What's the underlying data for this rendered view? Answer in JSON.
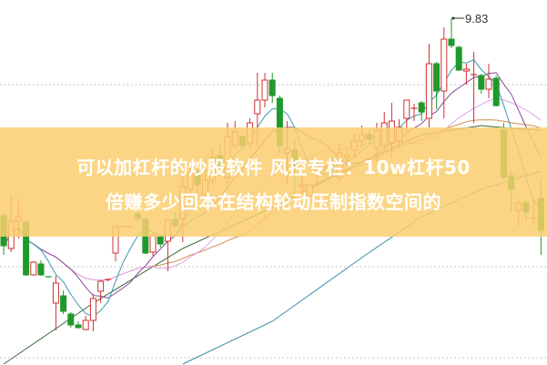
{
  "chart_data": {
    "type": "candlestick",
    "title": "",
    "grid": true,
    "max_label": "9.83",
    "colors": {
      "up": "#d03030",
      "down": "#1e9a2a",
      "ma5": "#3a9ab0",
      "ma10": "#8a4a9a",
      "ma20": "#e0a0e8",
      "ma30": "#d09050",
      "long_a": "#3c6a40",
      "long_b": "#3a8aa8",
      "grid": "#b8b8b8"
    },
    "candles": [
      [
        7.66,
        7.7,
        7.23,
        7.33
      ],
      [
        7.3,
        7.88,
        7.26,
        7.6
      ],
      [
        7.6,
        7.85,
        7.41,
        7.65
      ],
      [
        7.59,
        7.62,
        7.0,
        7.01
      ],
      [
        7.01,
        7.16,
        7.0,
        7.15
      ],
      [
        7.13,
        7.17,
        7.0,
        7.01
      ],
      [
        6.99,
        6.99,
        6.98,
        6.98
      ],
      [
        6.7,
        7.0,
        6.4,
        6.92
      ],
      [
        6.78,
        6.84,
        6.58,
        6.61
      ],
      [
        6.58,
        6.6,
        6.43,
        6.46
      ],
      [
        6.46,
        6.5,
        6.42,
        6.43
      ],
      [
        6.41,
        6.56,
        6.4,
        6.51
      ],
      [
        6.51,
        6.8,
        6.39,
        6.75
      ],
      [
        6.83,
        6.95,
        6.7,
        6.94
      ],
      [
        6.95,
        6.97,
        6.94,
        6.96
      ],
      [
        7.25,
        7.54,
        7.16,
        7.54
      ],
      [
        7.54,
        7.54,
        7.54,
        7.54
      ],
      [
        7.54,
        7.54,
        7.54,
        7.54
      ],
      [
        7.68,
        7.72,
        7.58,
        7.63
      ],
      [
        7.62,
        7.64,
        7.24,
        7.25
      ],
      [
        7.26,
        7.47,
        7.22,
        7.44
      ],
      [
        7.43,
        7.45,
        7.31,
        7.35
      ],
      [
        7.38,
        7.62,
        7.05,
        7.61
      ],
      [
        7.62,
        7.7,
        7.52,
        7.55
      ],
      [
        7.63,
        8.1,
        7.37,
        7.98
      ],
      [
        7.95,
        8.2,
        7.85,
        8.12
      ],
      [
        8.15,
        8.2,
        7.9,
        8.0
      ],
      [
        7.9,
        8.3,
        7.8,
        8.05
      ],
      [
        8.05,
        8.4,
        8.0,
        8.3
      ],
      [
        8.32,
        8.45,
        8.1,
        8.2
      ],
      [
        8.08,
        8.68,
        8.0,
        8.53
      ],
      [
        8.43,
        8.7,
        8.4,
        8.58
      ],
      [
        8.53,
        8.55,
        8.4,
        8.43
      ],
      [
        8.45,
        8.73,
        8.4,
        8.68
      ],
      [
        8.78,
        9.23,
        8.43,
        8.93
      ],
      [
        8.93,
        9.23,
        8.85,
        9.15
      ],
      [
        9.15,
        9.23,
        8.9,
        8.98
      ],
      [
        8.95,
        8.98,
        8.35,
        8.43
      ],
      [
        8.35,
        8.7,
        8.0,
        8.4
      ],
      [
        8.38,
        8.5,
        7.9,
        8.2
      ],
      [
        7.98,
        8.1,
        7.9,
        8.0
      ],
      [
        7.88,
        8.0,
        7.85,
        8.0
      ],
      [
        8.15,
        8.28,
        8.0,
        8.2
      ],
      [
        8.18,
        8.22,
        8.15,
        8.2
      ],
      [
        8.2,
        8.3,
        8.12,
        8.18
      ],
      [
        8.08,
        8.45,
        8.03,
        8.35
      ],
      [
        8.3,
        8.4,
        8.2,
        8.32
      ],
      [
        8.38,
        8.55,
        8.3,
        8.48
      ],
      [
        8.48,
        8.65,
        8.4,
        8.55
      ],
      [
        8.55,
        8.6,
        8.45,
        8.5
      ],
      [
        8.4,
        8.68,
        8.25,
        8.6
      ],
      [
        8.43,
        8.8,
        8.38,
        8.68
      ],
      [
        8.46,
        8.9,
        8.3,
        8.7
      ],
      [
        8.48,
        8.72,
        8.4,
        8.63
      ],
      [
        8.73,
        8.93,
        8.6,
        8.93
      ],
      [
        8.83,
        8.89,
        8.7,
        8.84
      ],
      [
        8.9,
        8.92,
        8.7,
        8.8
      ],
      [
        8.73,
        9.55,
        8.63,
        9.33
      ],
      [
        9.33,
        9.35,
        8.83,
        9.03
      ],
      [
        9.03,
        9.73,
        8.73,
        9.6
      ],
      [
        9.6,
        9.83,
        9.5,
        9.53
      ],
      [
        9.51,
        9.53,
        9.25,
        9.26
      ],
      [
        9.25,
        9.33,
        9.1,
        9.27
      ],
      [
        9.2,
        9.46,
        8.68,
        9.21
      ],
      [
        9.2,
        9.22,
        9.0,
        9.05
      ],
      [
        9.05,
        9.33,
        8.95,
        9.16
      ],
      [
        9.17,
        9.2,
        8.86,
        8.87
      ],
      [
        8.6,
        8.68,
        8.05,
        8.08
      ],
      [
        8.1,
        8.15,
        7.7,
        7.95
      ],
      [
        7.72,
        7.85,
        7.55,
        7.8
      ],
      [
        7.8,
        7.85,
        7.6,
        7.7
      ],
      [
        7.62,
        7.85,
        7.55,
        7.63
      ],
      [
        7.85,
        8.05,
        7.23,
        7.5
      ]
    ],
    "candle_fields": [
      "open",
      "high",
      "low",
      "close"
    ],
    "long_ma_a": [
      [
        0,
        6.03
      ],
      [
        12,
        6.7
      ],
      [
        24,
        7.3
      ],
      [
        36,
        7.75
      ],
      [
        48,
        8.25
      ],
      [
        56,
        8.55
      ],
      [
        64,
        8.65
      ],
      [
        68,
        8.62
      ],
      [
        72,
        8.6
      ]
    ],
    "long_ma_b": [
      [
        24,
        6.03
      ],
      [
        36,
        6.5
      ],
      [
        48,
        7.2
      ],
      [
        56,
        7.65
      ],
      [
        64,
        7.95
      ],
      [
        72,
        8.15
      ]
    ]
  },
  "banner": {
    "line1": "可以加杠杆的炒股软件 风控专栏：10w杠杆50",
    "line2": "倍赚多少回本在结构轮动压制指数空间的"
  }
}
